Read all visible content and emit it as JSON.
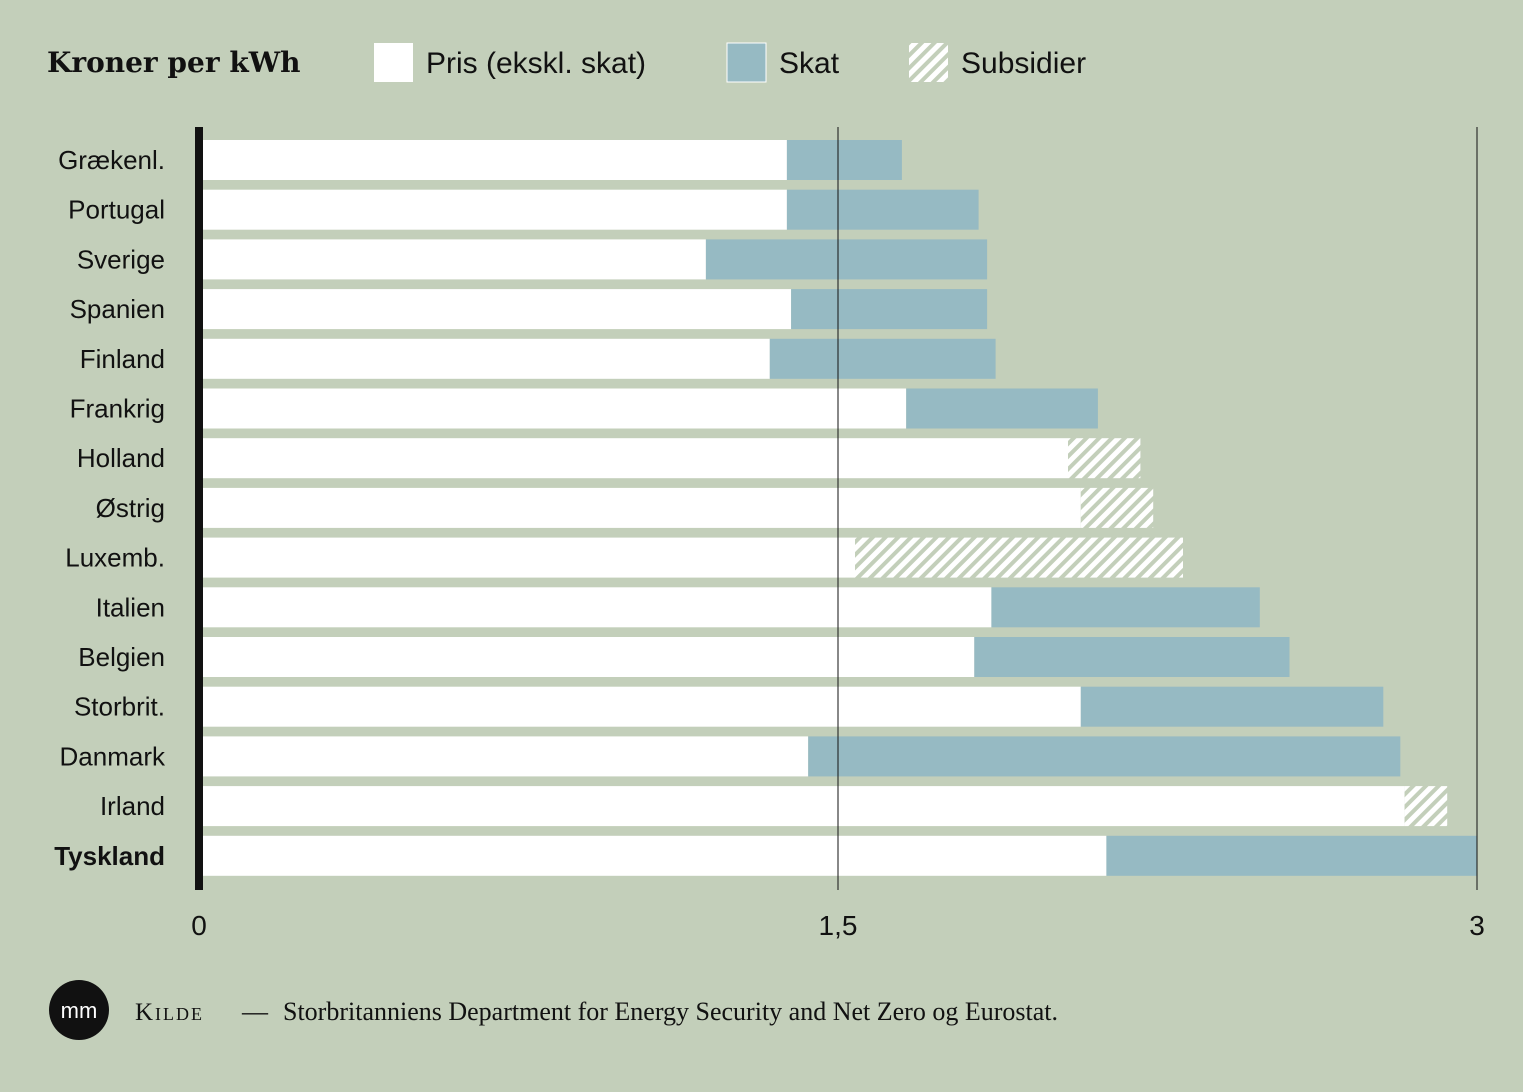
{
  "colors": {
    "background": "#c3cfba",
    "price": "#ffffff",
    "tax": "#96bac3",
    "subsidy_stripe": "#ffffff",
    "axis": "#111111",
    "text": "#111111"
  },
  "legend": {
    "title": "Kroner per kWh",
    "items": [
      {
        "key": "price",
        "label": "Pris (ekskl. skat)"
      },
      {
        "key": "tax",
        "label": "Skat"
      },
      {
        "key": "subsidy",
        "label": "Subsidier"
      }
    ]
  },
  "source": {
    "logo_text": "mm",
    "label": "Kilde",
    "dash": "—",
    "text": "Storbritanniens Department for Energy Security and Net Zero og Eurostat."
  },
  "chart_data": {
    "type": "bar",
    "orientation": "horizontal",
    "stacked": true,
    "xlim": [
      0,
      3
    ],
    "ticks": [
      {
        "value": 0,
        "label": "0"
      },
      {
        "value": 1.5,
        "label": "1,5"
      },
      {
        "value": 3,
        "label": "3"
      }
    ],
    "gridlines_at": [
      1.5,
      3
    ],
    "categories": [
      "Grækenl.",
      "Portugal",
      "Sverige",
      "Spanien",
      "Finland",
      "Frankrig",
      "Holland",
      "Østrig",
      "Luxemb.",
      "Italien",
      "Belgien",
      "Storbrit.",
      "Danmark",
      "Irland",
      "Tyskland"
    ],
    "highlight": "Tyskland",
    "series": [
      {
        "name": "Pris (ekskl. skat)",
        "key": "price",
        "values": [
          1.38,
          1.38,
          1.19,
          1.39,
          1.34,
          1.66,
          2.04,
          2.07,
          1.54,
          1.86,
          1.82,
          2.07,
          1.43,
          2.83,
          2.13
        ]
      },
      {
        "name": "Skat",
        "key": "tax",
        "values": [
          0.27,
          0.45,
          0.66,
          0.46,
          0.53,
          0.45,
          0,
          0,
          0,
          0.63,
          0.74,
          0.71,
          1.39,
          0,
          0.87
        ]
      },
      {
        "name": "Subsidier",
        "key": "subsidy",
        "values": [
          0,
          0,
          0,
          0,
          0,
          0,
          0.17,
          0.17,
          0.77,
          0,
          0,
          0,
          0,
          0.1,
          0
        ]
      }
    ]
  }
}
